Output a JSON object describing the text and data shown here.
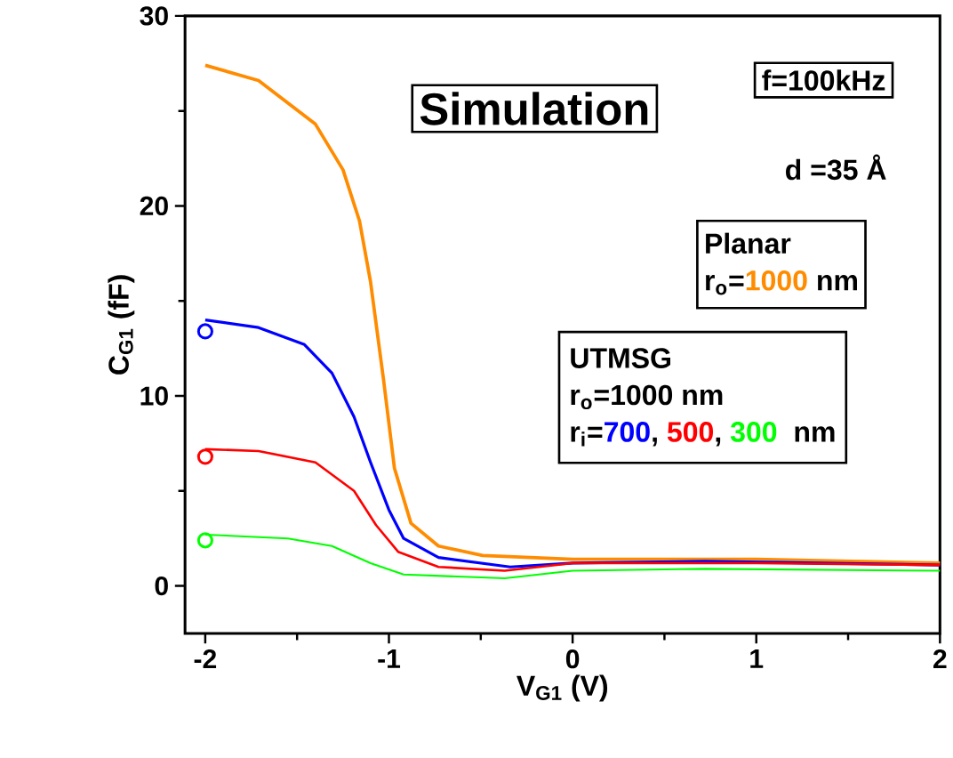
{
  "chart_data": {
    "type": "line",
    "xlabel": "V$_{G1}$ (V)",
    "ylabel": "C$_{G1}$ (fF)",
    "xlim": [
      -2.11,
      2
    ],
    "ylim": [
      -2.5,
      30
    ],
    "xticks": [
      -2,
      -1,
      0,
      1,
      2
    ],
    "yticks": [
      0,
      10,
      20,
      30
    ],
    "grid": false,
    "legend": false,
    "line_style": "solid",
    "annotations": [
      "Simulation",
      "f=100kHz",
      "d =35 Å",
      "Planar",
      "r$_{o}$=",
      "nm",
      "UTMSG",
      "r$_{o}$=1000 nm",
      "r$_{i}$=",
      ",",
      ",",
      "nm"
    ],
    "series": [
      {
        "name": "1000",
        "color": "#ff8c00",
        "x": [
          -2,
          -1.71,
          -1.4,
          -1.25,
          -1.16,
          -1.1,
          -1.03,
          -0.97,
          -0.88,
          -0.73,
          -0.49,
          0,
          1,
          2
        ],
        "values": [
          27.4,
          26.6,
          24.3,
          21.9,
          19.2,
          16.0,
          10.9,
          6.2,
          3.3,
          2.1,
          1.6,
          1.4,
          1.4,
          1.2
        ]
      },
      {
        "name": "700",
        "color": "#0000ff",
        "x": [
          -2,
          -1.71,
          -1.46,
          -1.31,
          -1.19,
          -1.1,
          -1.0,
          -0.92,
          -0.73,
          -0.34,
          0,
          0.72,
          2
        ],
        "values": [
          14.0,
          13.6,
          12.7,
          11.2,
          8.9,
          6.5,
          4.0,
          2.5,
          1.5,
          1.0,
          1.2,
          1.3,
          1.1
        ]
      },
      {
        "name": "500",
        "color": "#ff0000",
        "x": [
          -2,
          -1.71,
          -1.4,
          -1.19,
          -1.07,
          -0.95,
          -0.73,
          -0.37,
          0,
          1,
          2
        ],
        "values": [
          7.2,
          7.1,
          6.5,
          5.0,
          3.2,
          1.8,
          1.0,
          0.8,
          1.2,
          1.2,
          1.1
        ]
      },
      {
        "name": "300",
        "color": "#00ff00",
        "x": [
          -2,
          -1.55,
          -1.31,
          -1.1,
          -0.92,
          -0.37,
          0,
          0.72,
          2
        ],
        "values": [
          2.7,
          2.5,
          2.1,
          1.2,
          0.6,
          0.4,
          0.8,
          0.9,
          0.8
        ]
      },
      {
        "type": "scatter",
        "marker": "circle",
        "color": "#0000ff",
        "x": [
          -2
        ],
        "values": [
          13.4
        ]
      },
      {
        "type": "scatter",
        "marker": "circle",
        "color": "#ff0000",
        "x": [
          -2
        ],
        "values": [
          6.8
        ]
      },
      {
        "type": "scatter",
        "marker": "circle",
        "color": "#00ff00",
        "x": [
          -2
        ],
        "values": [
          2.4
        ]
      }
    ]
  }
}
